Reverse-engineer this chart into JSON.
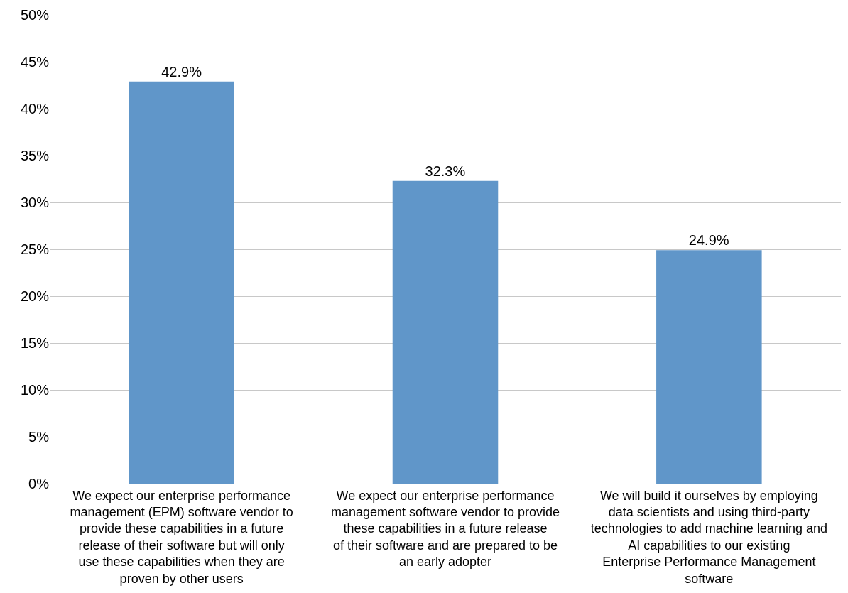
{
  "chart_data": {
    "type": "bar",
    "categories": [
      "We expect our enterprise performance management (EPM) software vendor to provide these capabilities in a future release of their software but will only use these capabilities when they are proven by other users",
      "We expect our enterprise performance management software vendor to provide these capabilities in a future release of their software and are prepared to be an early adopter",
      "We will build it ourselves by employing data scientists and using third-party technologies to add machine learning and AI capabilities to our existing Enterprise Performance Management software"
    ],
    "values": [
      42.9,
      32.3,
      24.9
    ],
    "value_labels": [
      "42.9%",
      "32.3%",
      "24.9%"
    ],
    "color": "#6096c9",
    "ylim": [
      0,
      50
    ],
    "yticks": [
      {
        "value": 0,
        "label": "0%"
      },
      {
        "value": 5,
        "label": "5%"
      },
      {
        "value": 10,
        "label": "10%"
      },
      {
        "value": 15,
        "label": "15%"
      },
      {
        "value": 20,
        "label": "20%"
      },
      {
        "value": 25,
        "label": "25%"
      },
      {
        "value": 30,
        "label": "30%"
      },
      {
        "value": 35,
        "label": "35%"
      },
      {
        "value": 40,
        "label": "40%"
      },
      {
        "value": 45,
        "label": "45%"
      },
      {
        "value": 50,
        "label": "50%"
      }
    ],
    "grid": "y"
  }
}
